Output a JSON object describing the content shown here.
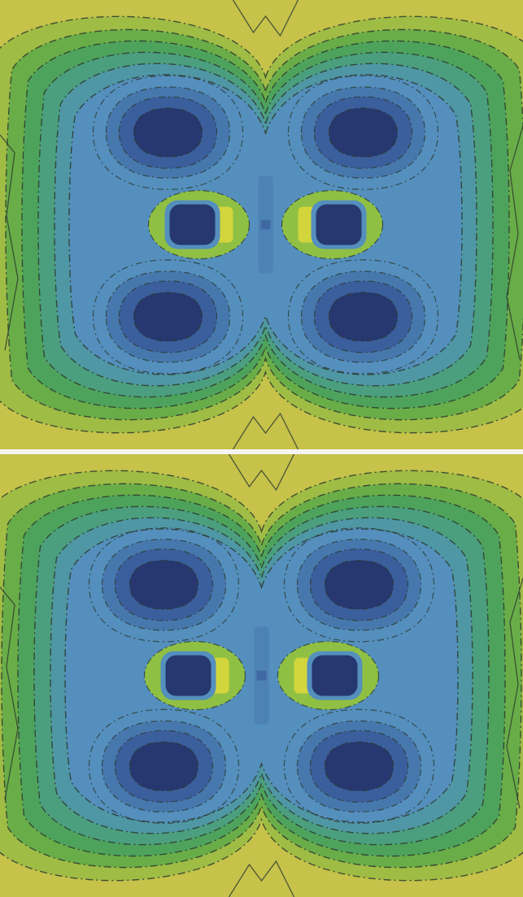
{
  "figure": {
    "panels": [
      {
        "id": "panel-top"
      },
      {
        "id": "panel-bottom"
      }
    ],
    "colors": {
      "outer": "#c6c24a",
      "band_1": "#9fbc45",
      "band_2": "#69ad49",
      "band_3": "#4ea35c",
      "band_4": "#4b9f7e",
      "band_5": "#4f97a4",
      "band_6": "#548fbd",
      "inner_1": "#4778ad",
      "inner_2": "#3b5e9c",
      "core": "#26386f",
      "ring_yellow": "#d3d53c",
      "ring_green": "#8fc044",
      "contour_line": "#2c3a2e"
    }
  }
}
